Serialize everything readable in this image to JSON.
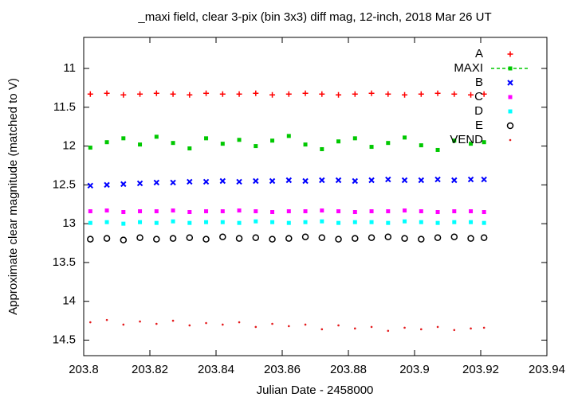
{
  "chart_data": {
    "type": "scatter",
    "title": "_maxi field, clear 3-pix (bin 3x3) diff mag, 12-inch, 2018 Mar 26 UT",
    "x_label": "Julian Date - 2458000",
    "y_label": "Approximate clear magnitude (matched to V)",
    "xlim": [
      203.8,
      203.94
    ],
    "xticks": [
      203.8,
      203.82,
      203.84,
      203.86,
      203.88,
      203.9,
      203.92,
      203.94
    ],
    "ylim": [
      10.6,
      14.7
    ],
    "y_inverted": true,
    "yticks": [
      11,
      11.5,
      12,
      12.5,
      13,
      13.5,
      14,
      14.5
    ],
    "grid": false,
    "legend": "top-right",
    "x": [
      203.802,
      203.807,
      203.812,
      203.817,
      203.822,
      203.827,
      203.832,
      203.837,
      203.842,
      203.847,
      203.852,
      203.857,
      203.862,
      203.867,
      203.872,
      203.877,
      203.882,
      203.887,
      203.892,
      203.897,
      203.902,
      203.907,
      203.912,
      203.917,
      203.921
    ],
    "series": [
      {
        "name": "A",
        "color": "#ff0000",
        "marker": "plus",
        "values": [
          11.33,
          11.32,
          11.34,
          11.33,
          11.32,
          11.33,
          11.34,
          11.32,
          11.33,
          11.33,
          11.32,
          11.34,
          11.33,
          11.32,
          11.33,
          11.34,
          11.33,
          11.32,
          11.33,
          11.34,
          11.33,
          11.32,
          11.33,
          11.34,
          11.33
        ]
      },
      {
        "name": "MAXI",
        "color": "#00c800",
        "marker": "square",
        "legend_line": "dashed",
        "values": [
          12.02,
          11.95,
          11.9,
          11.98,
          11.88,
          11.96,
          12.03,
          11.9,
          11.97,
          11.92,
          12.0,
          11.93,
          11.87,
          11.98,
          12.04,
          11.94,
          11.9,
          12.01,
          11.96,
          11.89,
          11.99,
          12.05,
          11.93,
          11.97,
          11.95
        ]
      },
      {
        "name": "B",
        "color": "#0000ff",
        "marker": "cross",
        "values": [
          12.51,
          12.5,
          12.49,
          12.48,
          12.47,
          12.47,
          12.46,
          12.46,
          12.45,
          12.46,
          12.45,
          12.45,
          12.44,
          12.45,
          12.44,
          12.44,
          12.45,
          12.44,
          12.43,
          12.44,
          12.44,
          12.43,
          12.44,
          12.43,
          12.43
        ]
      },
      {
        "name": "C",
        "color": "#ff00ff",
        "marker": "square",
        "values": [
          12.84,
          12.83,
          12.85,
          12.84,
          12.84,
          12.83,
          12.85,
          12.84,
          12.84,
          12.83,
          12.84,
          12.85,
          12.84,
          12.84,
          12.83,
          12.84,
          12.85,
          12.84,
          12.84,
          12.83,
          12.84,
          12.85,
          12.84,
          12.84,
          12.85
        ]
      },
      {
        "name": "D",
        "color": "#00ffff",
        "marker": "square",
        "values": [
          12.99,
          12.98,
          13.0,
          12.98,
          12.99,
          12.97,
          12.99,
          12.98,
          12.98,
          12.99,
          12.97,
          12.98,
          12.99,
          12.98,
          12.97,
          12.99,
          12.98,
          12.98,
          12.99,
          12.97,
          12.98,
          12.99,
          12.98,
          12.98,
          12.99
        ]
      },
      {
        "name": "E",
        "color": "#000000",
        "marker": "circle",
        "values": [
          13.2,
          13.19,
          13.21,
          13.18,
          13.2,
          13.19,
          13.18,
          13.2,
          13.17,
          13.19,
          13.18,
          13.2,
          13.19,
          13.17,
          13.18,
          13.2,
          13.19,
          13.18,
          13.17,
          13.19,
          13.2,
          13.18,
          13.17,
          13.19,
          13.18
        ]
      },
      {
        "name": "VEND",
        "color": "#e41a1c",
        "marker": "dot",
        "values": [
          14.27,
          14.24,
          14.3,
          14.26,
          14.29,
          14.25,
          14.31,
          14.28,
          14.3,
          14.27,
          14.33,
          14.29,
          14.32,
          14.3,
          14.36,
          14.31,
          14.35,
          14.33,
          14.38,
          14.34,
          14.36,
          14.33,
          14.37,
          14.35,
          14.34
        ]
      }
    ]
  }
}
